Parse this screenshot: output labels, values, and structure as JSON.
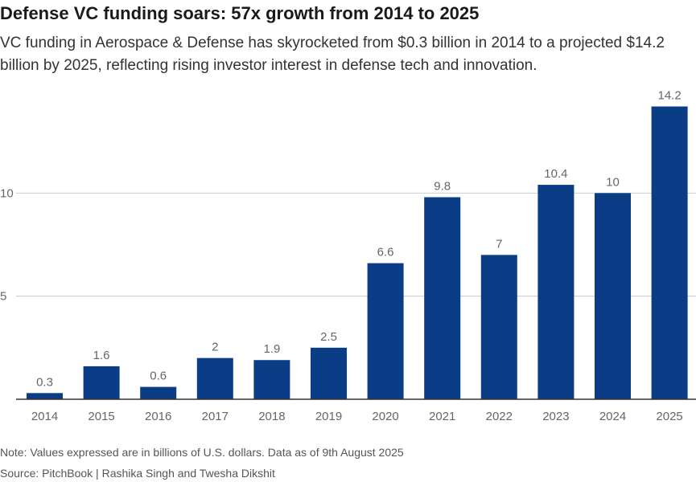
{
  "header": {
    "title": "Defense VC funding soars: 57x growth from 2014 to 2025",
    "subtitle": "VC funding in Aerospace & Defense has skyrocketed from $0.3 billion in 2014 to a projected $14.2 billion by 2025, reflecting rising investor interest in defense tech and innovation."
  },
  "footer": {
    "note": "Note: Values expressed are in billions of U.S. dollars. Data as of 9th August 2025",
    "source": "Source: PitchBook | Rashika Singh and Twesha Dikshit"
  },
  "colors": {
    "bar": "#0a3d86",
    "grid": "#cccccc",
    "axis": "#333333",
    "label": "#666666"
  },
  "chart_data": {
    "type": "bar",
    "title": "Defense VC funding soars: 57x growth from 2014 to 2025",
    "xlabel": "",
    "ylabel": "",
    "ylim": [
      0,
      15
    ],
    "yticks": [
      5,
      10
    ],
    "grid": true,
    "categories": [
      "2014",
      "2015",
      "2016",
      "2017",
      "2018",
      "2019",
      "2020",
      "2021",
      "2022",
      "2023",
      "2024",
      "2025"
    ],
    "values": [
      0.3,
      1.6,
      0.6,
      2,
      1.9,
      2.5,
      6.6,
      9.8,
      7,
      10.4,
      10,
      14.2
    ],
    "value_labels": [
      "0.3",
      "1.6",
      "0.6",
      "2",
      "1.9",
      "2.5",
      "6.6",
      "9.8",
      "7",
      "10.4",
      "10",
      "14.2"
    ]
  }
}
